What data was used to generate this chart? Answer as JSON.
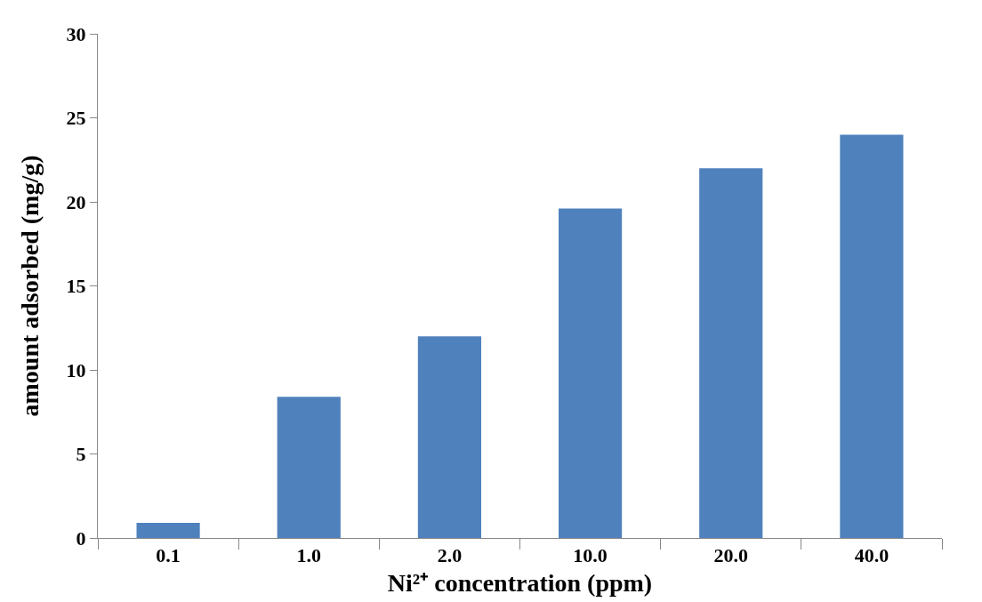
{
  "chart_data": {
    "type": "bar",
    "xlabel": "Ni²⁺ concentration (ppm)",
    "ylabel": "amount adsorbed (mg/g)",
    "categories": [
      "0.1",
      "1.0",
      "2.0",
      "10.0",
      "20.0",
      "40.0"
    ],
    "values": [
      0.9,
      8.4,
      12.0,
      19.6,
      22.0,
      24.0
    ],
    "color": "#4f81bd",
    "ylim": [
      0,
      30
    ],
    "yticks": [
      0,
      5,
      10,
      15,
      20,
      25,
      30
    ]
  }
}
